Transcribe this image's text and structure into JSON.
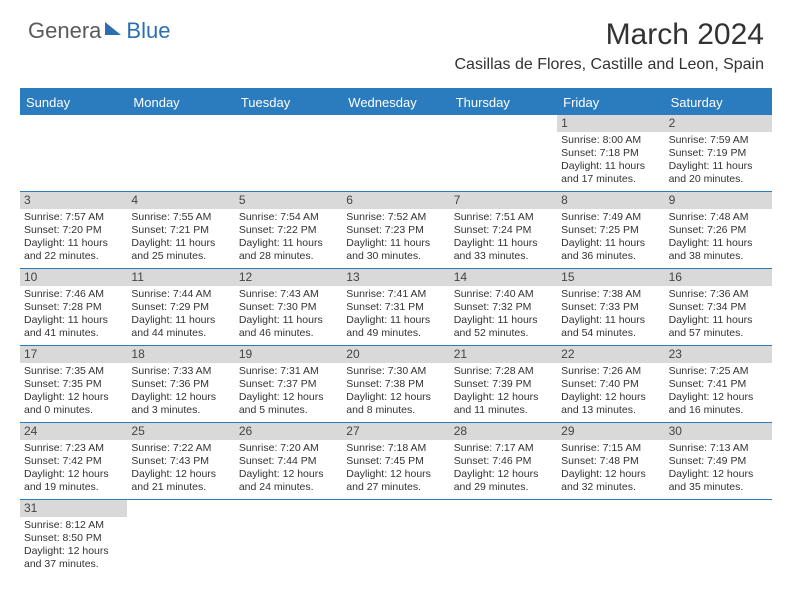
{
  "logo": {
    "part1": "Genera",
    "part2": "Blue"
  },
  "title": "March 2024",
  "location": "Casillas de Flores, Castille and Leon, Spain",
  "colors": {
    "header_bg": "#2b7bbf",
    "header_text": "#ffffff",
    "daynum_bg": "#d9d9d9",
    "border": "#2b7bbf",
    "logo_gray": "#5a5a5a",
    "logo_blue": "#2b6fb0"
  },
  "day_labels": [
    "Sunday",
    "Monday",
    "Tuesday",
    "Wednesday",
    "Thursday",
    "Friday",
    "Saturday"
  ],
  "weeks": [
    [
      null,
      null,
      null,
      null,
      null,
      {
        "n": "1",
        "sr": "Sunrise: 8:00 AM",
        "ss": "Sunset: 7:18 PM",
        "d1": "Daylight: 11 hours",
        "d2": "and 17 minutes."
      },
      {
        "n": "2",
        "sr": "Sunrise: 7:59 AM",
        "ss": "Sunset: 7:19 PM",
        "d1": "Daylight: 11 hours",
        "d2": "and 20 minutes."
      }
    ],
    [
      {
        "n": "3",
        "sr": "Sunrise: 7:57 AM",
        "ss": "Sunset: 7:20 PM",
        "d1": "Daylight: 11 hours",
        "d2": "and 22 minutes."
      },
      {
        "n": "4",
        "sr": "Sunrise: 7:55 AM",
        "ss": "Sunset: 7:21 PM",
        "d1": "Daylight: 11 hours",
        "d2": "and 25 minutes."
      },
      {
        "n": "5",
        "sr": "Sunrise: 7:54 AM",
        "ss": "Sunset: 7:22 PM",
        "d1": "Daylight: 11 hours",
        "d2": "and 28 minutes."
      },
      {
        "n": "6",
        "sr": "Sunrise: 7:52 AM",
        "ss": "Sunset: 7:23 PM",
        "d1": "Daylight: 11 hours",
        "d2": "and 30 minutes."
      },
      {
        "n": "7",
        "sr": "Sunrise: 7:51 AM",
        "ss": "Sunset: 7:24 PM",
        "d1": "Daylight: 11 hours",
        "d2": "and 33 minutes."
      },
      {
        "n": "8",
        "sr": "Sunrise: 7:49 AM",
        "ss": "Sunset: 7:25 PM",
        "d1": "Daylight: 11 hours",
        "d2": "and 36 minutes."
      },
      {
        "n": "9",
        "sr": "Sunrise: 7:48 AM",
        "ss": "Sunset: 7:26 PM",
        "d1": "Daylight: 11 hours",
        "d2": "and 38 minutes."
      }
    ],
    [
      {
        "n": "10",
        "sr": "Sunrise: 7:46 AM",
        "ss": "Sunset: 7:28 PM",
        "d1": "Daylight: 11 hours",
        "d2": "and 41 minutes."
      },
      {
        "n": "11",
        "sr": "Sunrise: 7:44 AM",
        "ss": "Sunset: 7:29 PM",
        "d1": "Daylight: 11 hours",
        "d2": "and 44 minutes."
      },
      {
        "n": "12",
        "sr": "Sunrise: 7:43 AM",
        "ss": "Sunset: 7:30 PM",
        "d1": "Daylight: 11 hours",
        "d2": "and 46 minutes."
      },
      {
        "n": "13",
        "sr": "Sunrise: 7:41 AM",
        "ss": "Sunset: 7:31 PM",
        "d1": "Daylight: 11 hours",
        "d2": "and 49 minutes."
      },
      {
        "n": "14",
        "sr": "Sunrise: 7:40 AM",
        "ss": "Sunset: 7:32 PM",
        "d1": "Daylight: 11 hours",
        "d2": "and 52 minutes."
      },
      {
        "n": "15",
        "sr": "Sunrise: 7:38 AM",
        "ss": "Sunset: 7:33 PM",
        "d1": "Daylight: 11 hours",
        "d2": "and 54 minutes."
      },
      {
        "n": "16",
        "sr": "Sunrise: 7:36 AM",
        "ss": "Sunset: 7:34 PM",
        "d1": "Daylight: 11 hours",
        "d2": "and 57 minutes."
      }
    ],
    [
      {
        "n": "17",
        "sr": "Sunrise: 7:35 AM",
        "ss": "Sunset: 7:35 PM",
        "d1": "Daylight: 12 hours",
        "d2": "and 0 minutes."
      },
      {
        "n": "18",
        "sr": "Sunrise: 7:33 AM",
        "ss": "Sunset: 7:36 PM",
        "d1": "Daylight: 12 hours",
        "d2": "and 3 minutes."
      },
      {
        "n": "19",
        "sr": "Sunrise: 7:31 AM",
        "ss": "Sunset: 7:37 PM",
        "d1": "Daylight: 12 hours",
        "d2": "and 5 minutes."
      },
      {
        "n": "20",
        "sr": "Sunrise: 7:30 AM",
        "ss": "Sunset: 7:38 PM",
        "d1": "Daylight: 12 hours",
        "d2": "and 8 minutes."
      },
      {
        "n": "21",
        "sr": "Sunrise: 7:28 AM",
        "ss": "Sunset: 7:39 PM",
        "d1": "Daylight: 12 hours",
        "d2": "and 11 minutes."
      },
      {
        "n": "22",
        "sr": "Sunrise: 7:26 AM",
        "ss": "Sunset: 7:40 PM",
        "d1": "Daylight: 12 hours",
        "d2": "and 13 minutes."
      },
      {
        "n": "23",
        "sr": "Sunrise: 7:25 AM",
        "ss": "Sunset: 7:41 PM",
        "d1": "Daylight: 12 hours",
        "d2": "and 16 minutes."
      }
    ],
    [
      {
        "n": "24",
        "sr": "Sunrise: 7:23 AM",
        "ss": "Sunset: 7:42 PM",
        "d1": "Daylight: 12 hours",
        "d2": "and 19 minutes."
      },
      {
        "n": "25",
        "sr": "Sunrise: 7:22 AM",
        "ss": "Sunset: 7:43 PM",
        "d1": "Daylight: 12 hours",
        "d2": "and 21 minutes."
      },
      {
        "n": "26",
        "sr": "Sunrise: 7:20 AM",
        "ss": "Sunset: 7:44 PM",
        "d1": "Daylight: 12 hours",
        "d2": "and 24 minutes."
      },
      {
        "n": "27",
        "sr": "Sunrise: 7:18 AM",
        "ss": "Sunset: 7:45 PM",
        "d1": "Daylight: 12 hours",
        "d2": "and 27 minutes."
      },
      {
        "n": "28",
        "sr": "Sunrise: 7:17 AM",
        "ss": "Sunset: 7:46 PM",
        "d1": "Daylight: 12 hours",
        "d2": "and 29 minutes."
      },
      {
        "n": "29",
        "sr": "Sunrise: 7:15 AM",
        "ss": "Sunset: 7:48 PM",
        "d1": "Daylight: 12 hours",
        "d2": "and 32 minutes."
      },
      {
        "n": "30",
        "sr": "Sunrise: 7:13 AM",
        "ss": "Sunset: 7:49 PM",
        "d1": "Daylight: 12 hours",
        "d2": "and 35 minutes."
      }
    ],
    [
      {
        "n": "31",
        "sr": "Sunrise: 8:12 AM",
        "ss": "Sunset: 8:50 PM",
        "d1": "Daylight: 12 hours",
        "d2": "and 37 minutes."
      },
      null,
      null,
      null,
      null,
      null,
      null
    ]
  ]
}
